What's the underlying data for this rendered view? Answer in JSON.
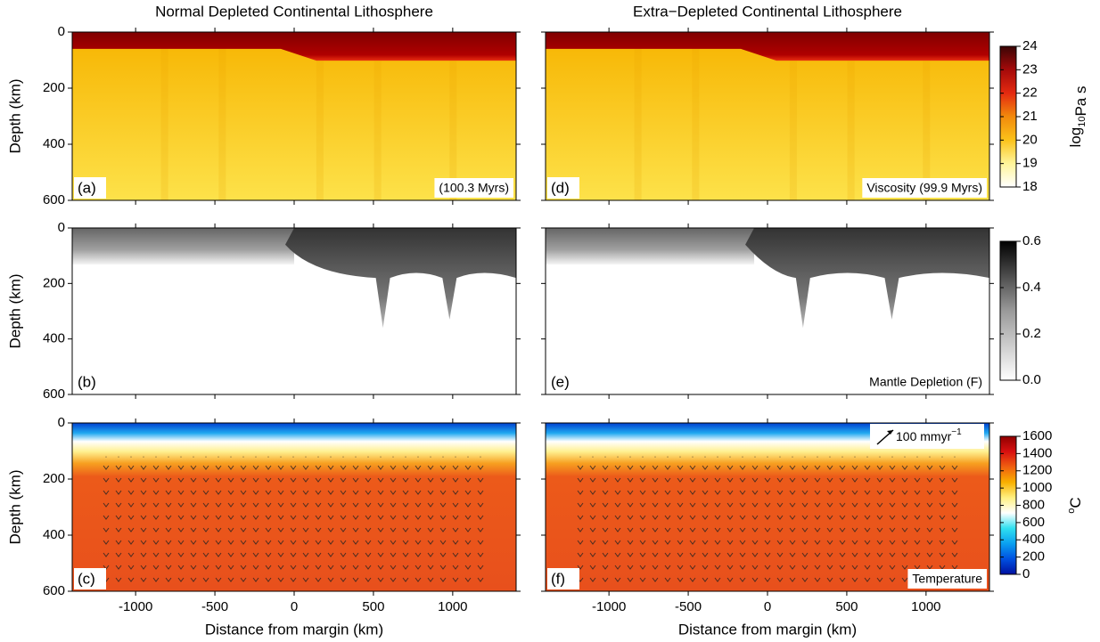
{
  "chart_data": [
    {
      "type": "heatmap",
      "title": "Normal Depleted Continental Lithosphere",
      "panel": "(a)",
      "annotation": "(100.3 Myrs)",
      "ylabel": "Depth (km)",
      "xlim": [
        -1400,
        1400
      ],
      "ylim": [
        600,
        0
      ],
      "xticks": [
        -1000,
        -500,
        0,
        500,
        1000
      ],
      "yticks": [
        0,
        200,
        400,
        600
      ]
    },
    {
      "type": "heatmap",
      "panel": "(b)",
      "ylabel": "Depth (km)",
      "xlim": [
        -1400,
        1400
      ],
      "ylim": [
        600,
        0
      ],
      "xticks": [
        -1000,
        -500,
        0,
        500,
        1000
      ],
      "yticks": [
        0,
        200,
        400,
        600
      ]
    },
    {
      "type": "heatmap",
      "panel": "(c)",
      "ylabel": "Depth (km)",
      "xlabel": "Distance from margin (km)",
      "xlim": [
        -1400,
        1400
      ],
      "ylim": [
        600,
        0
      ],
      "xticks": [
        -1000,
        -500,
        0,
        500,
        1000
      ],
      "yticks": [
        0,
        200,
        400,
        600
      ]
    },
    {
      "type": "heatmap",
      "title": "Extra−Depleted Continental Lithosphere",
      "panel": "(d)",
      "annotation": "Viscosity (99.9 Myrs)",
      "xlim": [
        -1400,
        1400
      ],
      "ylim": [
        600,
        0
      ],
      "xticks": [
        -1000,
        -500,
        0,
        500,
        1000
      ],
      "yticks": [
        0,
        200,
        400,
        600
      ]
    },
    {
      "type": "heatmap",
      "panel": "(e)",
      "annotation": "Mantle Depletion (F)",
      "xlim": [
        -1400,
        1400
      ],
      "ylim": [
        600,
        0
      ],
      "xticks": [
        -1000,
        -500,
        0,
        500,
        1000
      ],
      "yticks": [
        0,
        200,
        400,
        600
      ]
    },
    {
      "type": "heatmap",
      "panel": "(f)",
      "annotation": "Temperature",
      "scale_label": "100 mmyr",
      "scale_sup": "−1",
      "xlabel": "Distance from margin (km)",
      "xlim": [
        -1400,
        1400
      ],
      "ylim": [
        600,
        0
      ],
      "xticks": [
        -1000,
        -500,
        0,
        500,
        1000
      ],
      "yticks": [
        0,
        200,
        400,
        600
      ]
    }
  ],
  "colorbars": [
    {
      "label": "log",
      "label_sub": "10",
      "label_unit": "Pa s",
      "lim": [
        18,
        24
      ],
      "ticks": [
        18,
        19,
        20,
        21,
        22,
        23,
        24
      ],
      "colors": [
        "#ffffff",
        "#fff59a",
        "#fbc21a",
        "#f28a0c",
        "#e42a10",
        "#a50a0a",
        "#3a0505"
      ]
    },
    {
      "lim": [
        0,
        0.6
      ],
      "ticks": [
        {
          "value": 0,
          "label": "0.0"
        },
        0.2,
        0.4,
        0.6
      ],
      "colors": [
        "#ffffff",
        "#9a9a9a",
        "#000000"
      ]
    },
    {
      "label_sup": "o",
      "label": "C",
      "lim": [
        0,
        1600
      ],
      "ticks": [
        0,
        200,
        400,
        600,
        800,
        1000,
        1200,
        1400,
        1600
      ],
      "colors": [
        "#0010a0",
        "#0050e0",
        "#0aa0f0",
        "#30e0f0",
        "#ffffff",
        "#fff080",
        "#f9b000",
        "#f06010",
        "#d81010",
        "#900000"
      ]
    }
  ]
}
